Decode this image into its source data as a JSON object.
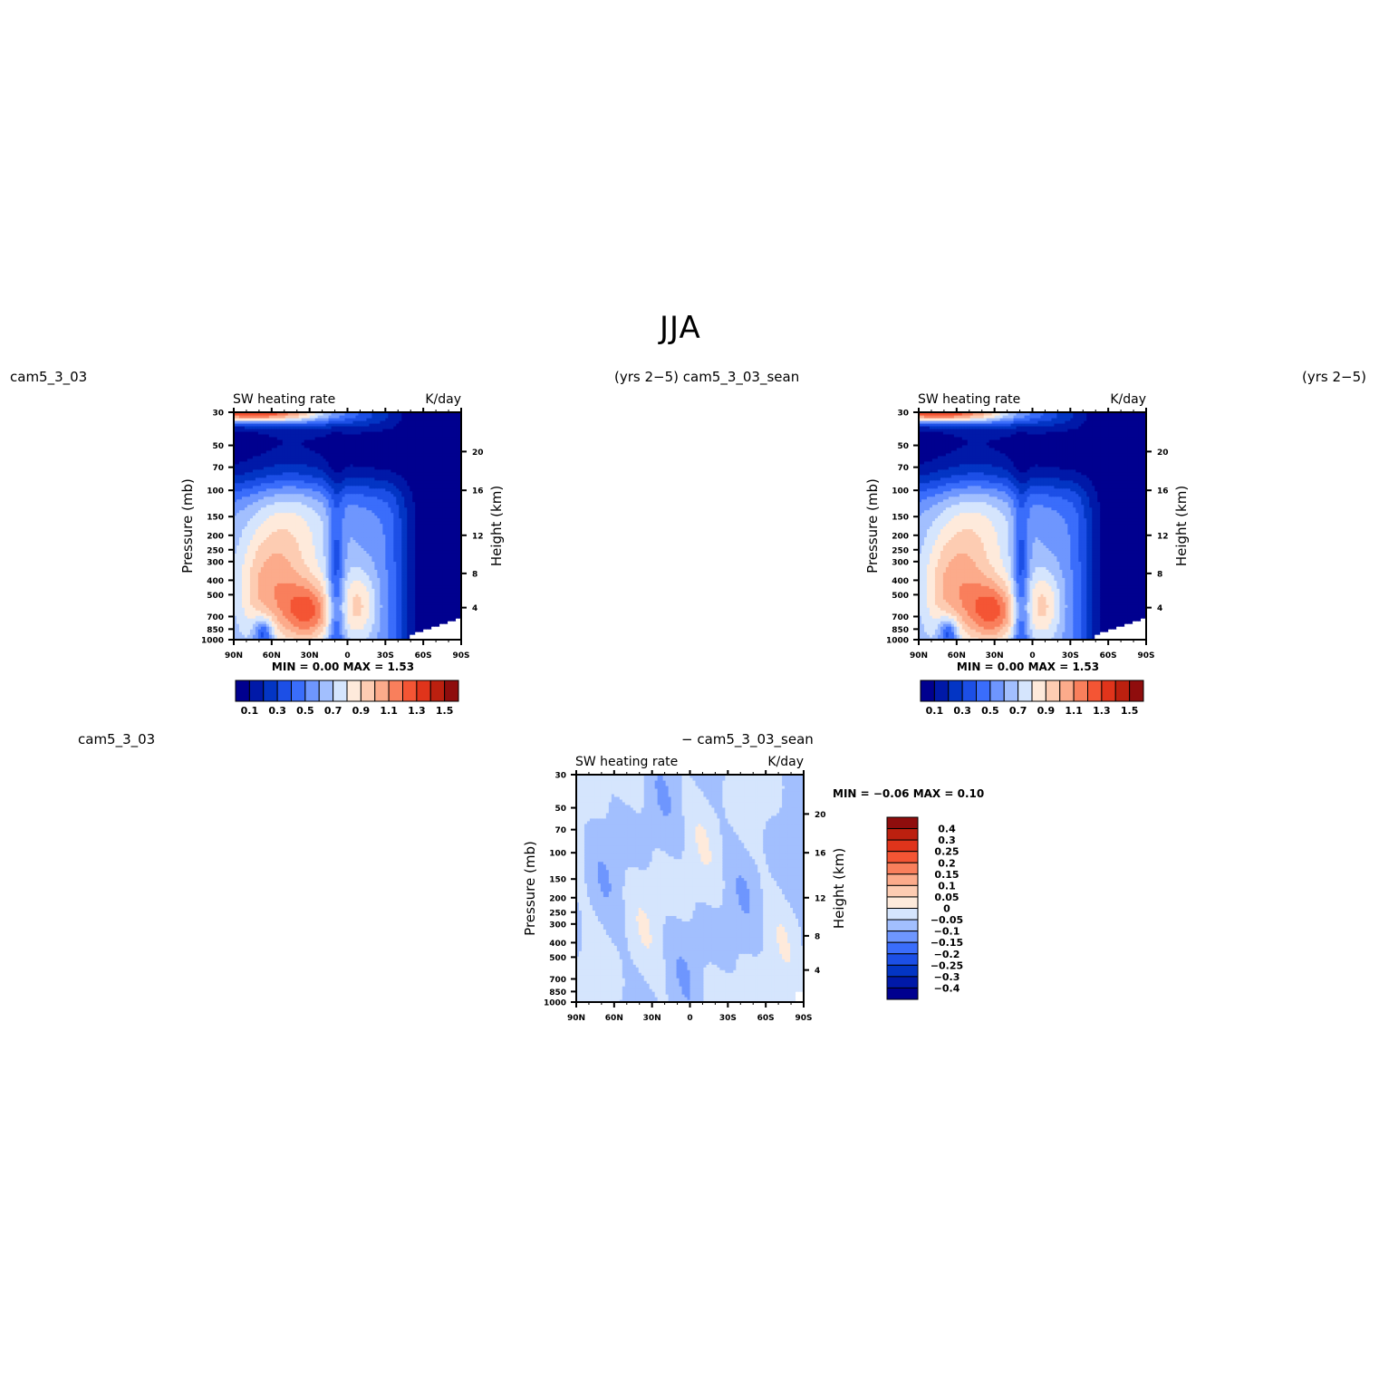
{
  "page_title": "JJA",
  "panels": [
    {
      "left_label": "cam5_3_03",
      "right_label": "(yrs 2−5) cam5_3_03_sean",
      "plot_title": "SW heating rate",
      "units": "K/day",
      "min_max": "MIN =     0.00   MAX =     1.53",
      "y_axis_label": "Pressure (mb)",
      "y2_axis_label": "Height (km)"
    },
    {
      "left_label": "",
      "right_label": "(yrs 2−5)",
      "plot_title": "SW heating rate",
      "units": "K/day",
      "min_max": "MIN =     0.00   MAX =     1.53",
      "y_axis_label": "Pressure (mb)",
      "y2_axis_label": "Height (km)"
    },
    {
      "left_label": "cam5_3_03",
      "right_label": "− cam5_3_03_sean",
      "plot_title": "SW heating rate",
      "units": "K/day",
      "min_max": "MIN =   −0.06   MAX =     0.10",
      "y_axis_label": "Pressure (mb)",
      "y2_axis_label": "Height (km)"
    }
  ],
  "chart_data": [
    {
      "type": "heatmap",
      "title": "SW heating rate",
      "units": "K/day",
      "x_ticks": [
        "90N",
        "60N",
        "30N",
        "0",
        "30S",
        "60S",
        "90S"
      ],
      "y_ticks": [
        "30",
        "50",
        "70",
        "100",
        "150",
        "200",
        "250",
        "300",
        "400",
        "500",
        "700",
        "850",
        "1000"
      ],
      "y2_ticks": [
        "20",
        "16",
        "12",
        "8",
        "4"
      ],
      "ylim": [
        1000,
        30
      ],
      "y_scale": "log",
      "colorbar_labels": [
        "0.1",
        "0.3",
        "0.5",
        "0.7",
        "0.9",
        "1.1",
        "1.3",
        "1.5"
      ],
      "colorbar_colors": [
        "#00008f",
        "#0019a8",
        "#0335c4",
        "#1c4fe6",
        "#3a6dfb",
        "#6e96fe",
        "#a2bffe",
        "#d5e5fd",
        "#feeadb",
        "#fdccb2",
        "#fcab8b",
        "#f97f5c",
        "#f45534",
        "#e0341b",
        "#bc200f",
        "#8f0d0d"
      ],
      "max": 1.53,
      "min": 0.0
    },
    {
      "type": "heatmap",
      "title": "SW heating rate",
      "units": "K/day",
      "x_ticks": [
        "90N",
        "60N",
        "30N",
        "0",
        "30S",
        "60S",
        "90S"
      ],
      "y_ticks": [
        "30",
        "50",
        "70",
        "100",
        "150",
        "200",
        "250",
        "300",
        "400",
        "500",
        "700",
        "850",
        "1000"
      ],
      "y2_ticks": [
        "20",
        "16",
        "12",
        "8",
        "4"
      ],
      "ylim": [
        1000,
        30
      ],
      "y_scale": "log",
      "colorbar_labels": [
        "0.1",
        "0.3",
        "0.5",
        "0.7",
        "0.9",
        "1.1",
        "1.3",
        "1.5"
      ],
      "colorbar_colors": [
        "#00008f",
        "#0019a8",
        "#0335c4",
        "#1c4fe6",
        "#3a6dfb",
        "#6e96fe",
        "#a2bffe",
        "#d5e5fd",
        "#feeadb",
        "#fdccb2",
        "#fcab8b",
        "#f97f5c",
        "#f45534",
        "#e0341b",
        "#bc200f",
        "#8f0d0d"
      ],
      "max": 1.53,
      "min": 0.0
    },
    {
      "type": "heatmap",
      "title": "SW heating rate",
      "units": "K/day",
      "x_ticks": [
        "90N",
        "60N",
        "30N",
        "0",
        "30S",
        "60S",
        "90S"
      ],
      "y_ticks": [
        "30",
        "50",
        "70",
        "100",
        "150",
        "200",
        "250",
        "300",
        "400",
        "500",
        "700",
        "850",
        "1000"
      ],
      "y2_ticks": [
        "20",
        "16",
        "12",
        "8",
        "4"
      ],
      "ylim": [
        1000,
        30
      ],
      "y_scale": "log",
      "colorbar_labels": [
        "0.4",
        "0.3",
        "0.25",
        "0.2",
        "0.15",
        "0.1",
        "0.05",
        "0",
        "−0.05",
        "−0.1",
        "−0.15",
        "−0.2",
        "−0.25",
        "−0.3",
        "−0.4"
      ],
      "colorbar_colors": [
        "#8f0d0d",
        "#bc200f",
        "#e0341b",
        "#f45534",
        "#f97f5c",
        "#fcab8b",
        "#fdccb2",
        "#feeadb",
        "#d5e5fd",
        "#a2bffe",
        "#6e96fe",
        "#3a6dfb",
        "#1c4fe6",
        "#0335c4",
        "#0019a8",
        "#00008f"
      ],
      "max": 0.1,
      "min": -0.06
    }
  ]
}
